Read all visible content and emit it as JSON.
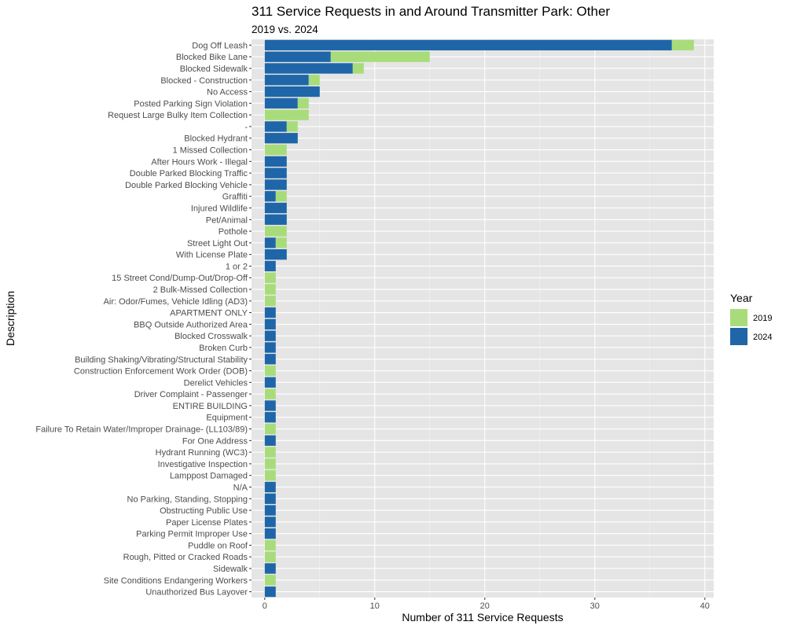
{
  "chart_data": {
    "type": "bar",
    "orientation": "horizontal",
    "stacked": true,
    "title": "311 Service Requests in and Around Transmitter Park: Other",
    "subtitle": "2019 vs. 2024",
    "xlabel": "Number of 311 Service Requests",
    "ylabel": "Description",
    "xlim": [
      -1.2,
      40.8
    ],
    "x_ticks": [
      0,
      10,
      20,
      30,
      40
    ],
    "grid": true,
    "legend_title": "Year",
    "legend_position": "right",
    "categories": [
      "Dog Off Leash",
      "Blocked Bike Lane",
      "Blocked Sidewalk",
      "Blocked - Construction",
      "No Access",
      "Posted Parking Sign Violation",
      "Request Large Bulky Item Collection",
      "-",
      "Blocked Hydrant",
      "1 Missed Collection",
      "After Hours Work - Illegal",
      "Double Parked Blocking Traffic",
      "Double Parked Blocking Vehicle",
      "Graffiti",
      "Injured Wildlife",
      "Pet/Animal",
      "Pothole",
      "Street Light Out",
      "With License Plate",
      "1 or 2",
      "15 Street Cond/Dump-Out/Drop-Off",
      "2 Bulk-Missed Collection",
      "Air: Odor/Fumes, Vehicle Idling (AD3)",
      "APARTMENT ONLY",
      "BBQ Outside Authorized Area",
      "Blocked Crosswalk",
      "Broken Curb",
      "Building Shaking/Vibrating/Structural Stability",
      "Construction Enforcement Work Order (DOB)",
      "Derelict Vehicles",
      "Driver Complaint - Passenger",
      "ENTIRE BUILDING",
      "Equipment",
      "Failure To Retain Water/Improper Drainage- (LL103/89)",
      "For One Address",
      "Hydrant Running (WC3)",
      "Investigative Inspection",
      "Lamppost Damaged",
      "N/A",
      "No Parking, Standing, Stopping",
      "Obstructing Public Use",
      "Paper License Plates",
      "Parking Permit Improper Use",
      "Puddle on Roof",
      "Rough, Pitted or Cracked Roads",
      "Sidewalk",
      "Site Conditions Endangering Workers",
      "Unauthorized Bus Layover"
    ],
    "series": [
      {
        "name": "2024",
        "color": "#1f66a8",
        "values": [
          37,
          6,
          8,
          4,
          5,
          3,
          0,
          2,
          3,
          0,
          2,
          2,
          2,
          1,
          2,
          2,
          0,
          1,
          2,
          1,
          0,
          0,
          0,
          1,
          1,
          1,
          1,
          1,
          0,
          1,
          0,
          1,
          1,
          0,
          1,
          0,
          0,
          0,
          1,
          1,
          1,
          1,
          1,
          0,
          0,
          1,
          0,
          1
        ]
      },
      {
        "name": "2019",
        "color": "#a8dc7a",
        "values": [
          2,
          9,
          1,
          1,
          0,
          1,
          4,
          1,
          0,
          2,
          0,
          0,
          0,
          1,
          0,
          0,
          2,
          1,
          0,
          0,
          1,
          1,
          1,
          0,
          0,
          0,
          0,
          0,
          1,
          0,
          1,
          0,
          0,
          1,
          0,
          1,
          1,
          1,
          0,
          0,
          0,
          0,
          0,
          1,
          1,
          0,
          1,
          0
        ]
      }
    ],
    "legend_order": [
      "2019",
      "2024"
    ]
  }
}
